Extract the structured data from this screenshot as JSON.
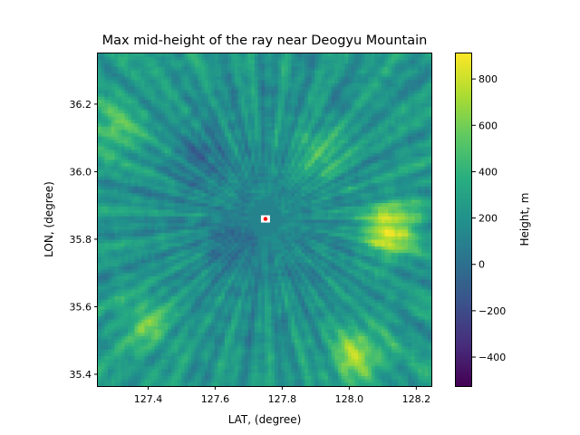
{
  "chart_data": {
    "type": "heatmap",
    "title": "Max mid-height of the ray near Deogyu Mountain",
    "xlabel": "LAT, (degree)",
    "ylabel": "LON, (degree)",
    "colorbar_label": "Height, m",
    "colormap": "viridis",
    "xlim": [
      127.25,
      128.245
    ],
    "ylim": [
      35.365,
      36.35
    ],
    "clim": [
      -525,
      910
    ],
    "grid": false,
    "x_ticks": [
      127.4,
      127.6,
      127.8,
      128.0,
      128.2
    ],
    "x_tick_labels": [
      "127.4",
      "127.6",
      "127.8",
      "128.0",
      "128.2"
    ],
    "y_ticks": [
      35.4,
      35.6,
      35.8,
      36.0,
      36.2
    ],
    "y_tick_labels": [
      "35.4",
      "35.6",
      "35.8",
      "36.0",
      "36.2"
    ],
    "colorbar_ticks": [
      -400,
      -200,
      0,
      200,
      400,
      600,
      800
    ],
    "colorbar_tick_labels": [
      "−400",
      "−200",
      "0",
      "200",
      "400",
      "600",
      "800"
    ],
    "grid_resolution": [
      100,
      100
    ],
    "typical_value": 150,
    "center_marker": {
      "lat": 127.75,
      "lon": 35.86,
      "color": "#ff0000",
      "background": "#ffffff"
    },
    "regions": [
      {
        "lat": 128.12,
        "lon": 35.83,
        "value": 830,
        "note": "bright ridge east"
      },
      {
        "lat": 128.02,
        "lon": 35.46,
        "value": 620,
        "note": "bright band southeast"
      },
      {
        "lat": 127.4,
        "lon": 35.55,
        "value": 460,
        "note": "southwest ridges"
      },
      {
        "lat": 127.92,
        "lon": 36.05,
        "value": 450,
        "note": "northeast ridges"
      },
      {
        "lat": 127.3,
        "lon": 36.12,
        "value": 420,
        "note": "northwest"
      },
      {
        "lat": 127.55,
        "lon": 36.05,
        "value": -50,
        "note": "dark zone northwest"
      },
      {
        "lat": 127.65,
        "lon": 35.78,
        "value": -20,
        "note": "dark zone center-west"
      },
      {
        "lat": 128.2,
        "lon": 36.28,
        "value": 80,
        "note": "low northeast corner"
      }
    ]
  }
}
